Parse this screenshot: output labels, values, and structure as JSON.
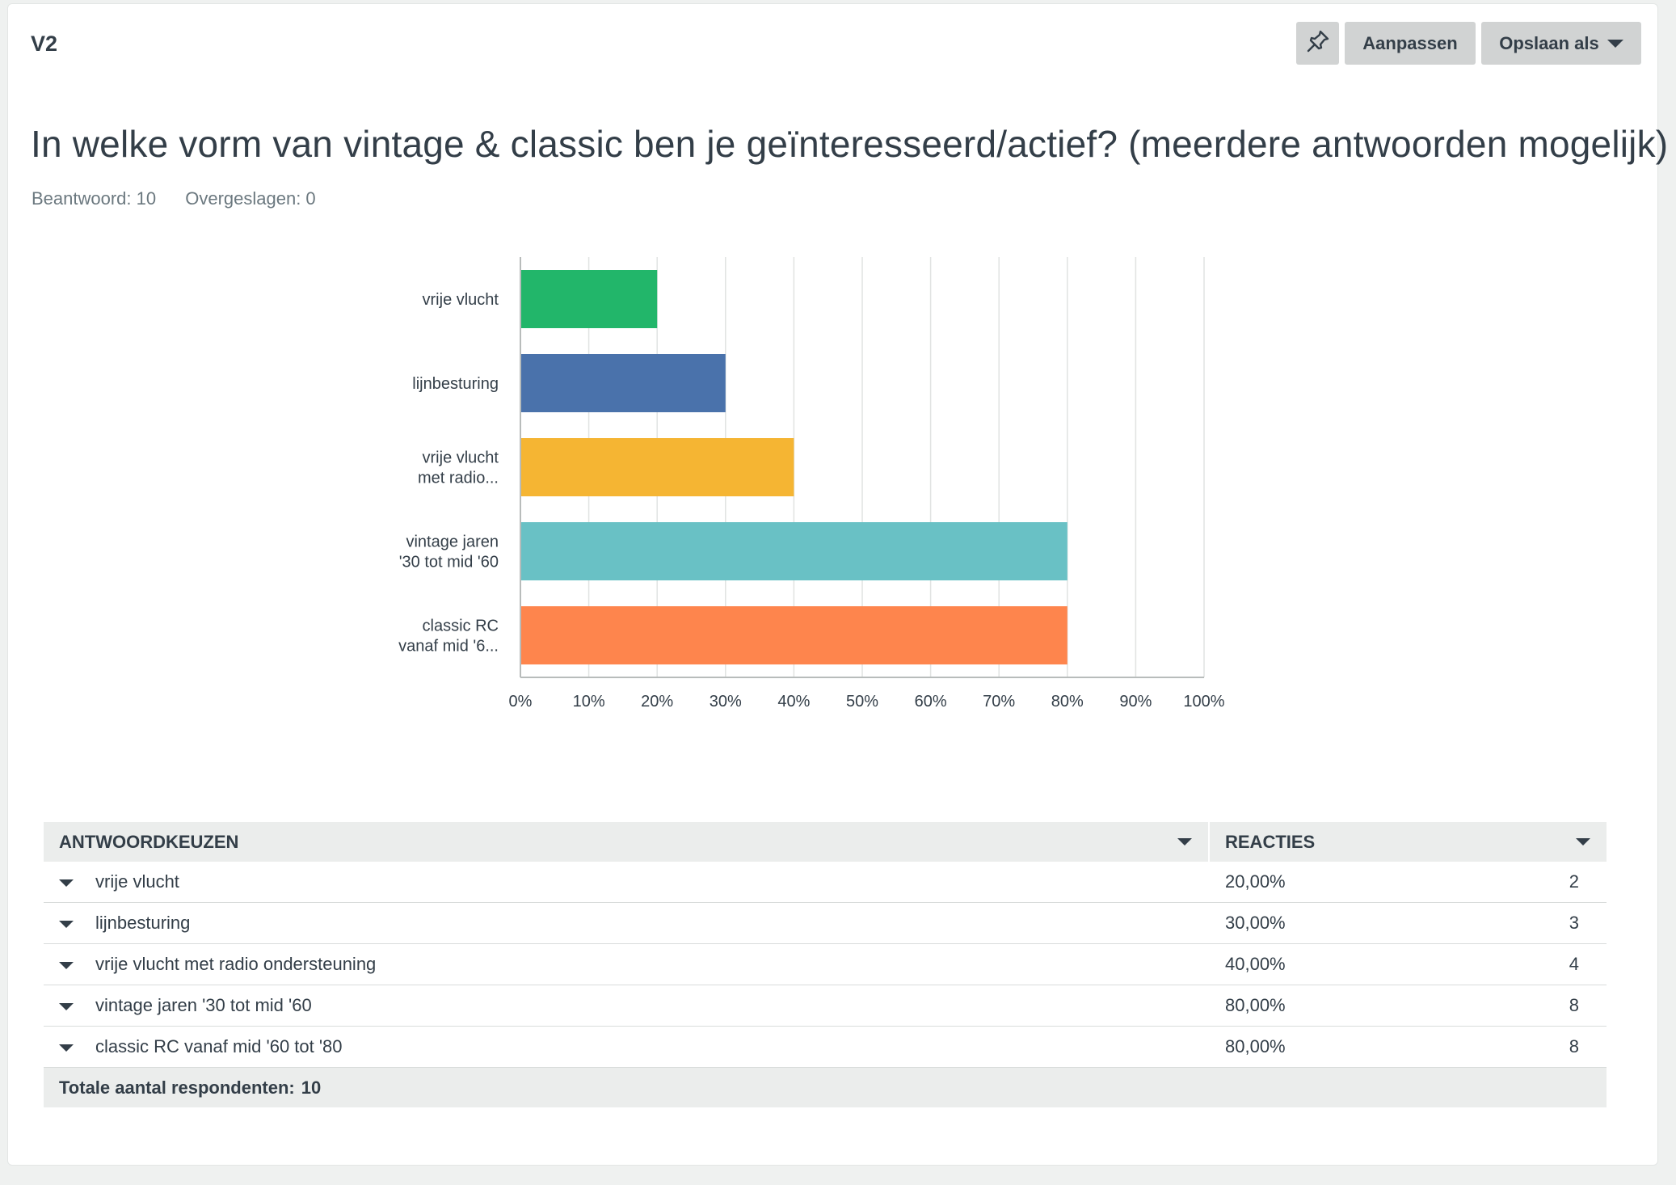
{
  "question": {
    "id": "V2",
    "title": "In welke vorm van vintage & classic ben je geïnteresseerd/actief? (meerdere antwoorden mogelijk)",
    "answered_label": "Beantwoord: 10",
    "skipped_label": "Overgeslagen: 0"
  },
  "toolbar": {
    "pin_icon": "pin-icon",
    "edit_label": "Aanpassen",
    "save_label": "Opslaan als"
  },
  "chart_data": {
    "type": "bar",
    "orientation": "horizontal",
    "categories": [
      "vrije vlucht",
      "lijnbesturing",
      "vrije vlucht met radio...",
      "vintage jaren '30 tot mid '60",
      "classic RC vanaf mid '6..."
    ],
    "category_lines": [
      [
        "vrije vlucht"
      ],
      [
        "lijnbesturing"
      ],
      [
        "vrije vlucht",
        "met radio..."
      ],
      [
        "vintage jaren",
        "'30 tot mid '60"
      ],
      [
        "classic RC",
        "vanaf mid '6..."
      ]
    ],
    "values": [
      20,
      30,
      40,
      80,
      80
    ],
    "colors": [
      "#22b66a",
      "#4a72ab",
      "#f5b533",
      "#69c1c5",
      "#fe854d"
    ],
    "xlim": [
      0,
      100
    ],
    "xticks": [
      "0%",
      "10%",
      "20%",
      "30%",
      "40%",
      "50%",
      "60%",
      "70%",
      "80%",
      "90%",
      "100%"
    ],
    "grid": true
  },
  "table": {
    "headers": {
      "choice": "ANTWOORDKEUZEN",
      "responses": "REACTIES"
    },
    "rows": [
      {
        "label": "vrije vlucht",
        "percent": "20,00%",
        "count": "2"
      },
      {
        "label": "lijnbesturing",
        "percent": "30,00%",
        "count": "3"
      },
      {
        "label": "vrije vlucht met radio ondersteuning",
        "percent": "40,00%",
        "count": "4"
      },
      {
        "label": "vintage jaren '30 tot mid '60",
        "percent": "80,00%",
        "count": "8"
      },
      {
        "label": "classic RC vanaf mid '60 tot '80",
        "percent": "80,00%",
        "count": "8"
      }
    ],
    "footer_label": "Totale aantal respondenten:",
    "footer_value": "10"
  }
}
